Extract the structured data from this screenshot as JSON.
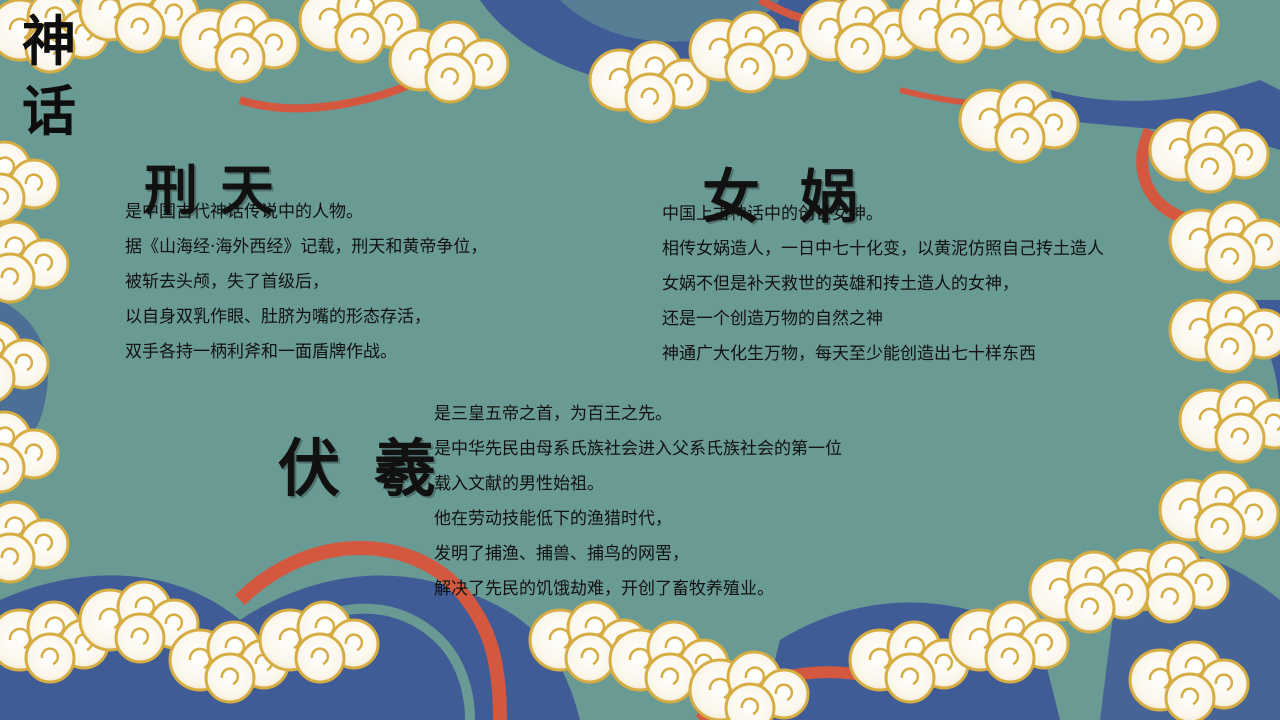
{
  "vertical_title": [
    "神",
    "话"
  ],
  "sections": {
    "xingtian": {
      "heading": "刑天",
      "lines": [
        "是中国古代神话传说中的人物。",
        "据《山海经·海外西经》记载，刑天和黄帝争位，",
        "被斩去头颅，失了首级后，",
        "以自身双乳作眼、肚脐为嘴的形态存活，",
        "双手各持一柄利斧和一面盾牌作战。"
      ]
    },
    "nvwa": {
      "heading": "女娲",
      "lines": [
        "中国上古神话中的创世女神。",
        "相传女娲造人，一日中七十化变，以黄泥仿照自己抟土造人",
        "女娲不但是补天救世的英雄和抟土造人的女神，",
        "还是一个创造万物的自然之神",
        "神通广大化生万物，每天至少能创造出七十样东西"
      ]
    },
    "fuxi": {
      "heading": "伏羲",
      "lines": [
        "是三皇五帝之首，为百王之先。",
        "是中华先民由母系氏族社会进入父系氏族社会的第一位",
        "载入文献的男性始祖。",
        "他在劳动技能低下的渔猎时代，",
        "发明了捕渔、捕兽、捕鸟的网罟，",
        "解决了先民的饥饿劫难，开创了畜牧养殖业。"
      ]
    }
  },
  "colors": {
    "background": "#6a9a94",
    "cloud": "#fbf6ea",
    "cloud_gold": "#d6ad43",
    "wave_blue": "#3f5c96",
    "wave_red": "#d4573f",
    "text": "#111111"
  }
}
